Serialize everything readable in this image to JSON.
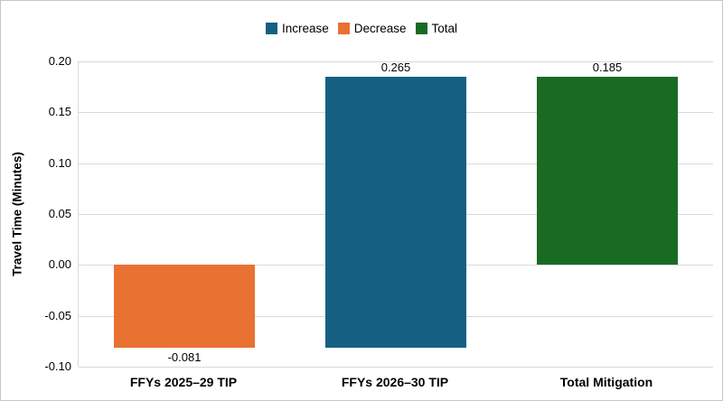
{
  "chart_data": {
    "type": "bar",
    "title": "",
    "xlabel": "",
    "ylabel": "Travel Time (Minutes)",
    "ylim": [
      -0.1,
      0.2
    ],
    "grid": true,
    "legend_position": "top",
    "legend": [
      {
        "label": "Increase",
        "color": "#156082"
      },
      {
        "label": "Decrease",
        "color": "#E97132"
      },
      {
        "label": "Total",
        "color": "#196B24"
      }
    ],
    "categories": [
      "FFYs 2025–29 TIP",
      "FFYs 2026–30 TIP",
      "Total Mitigation"
    ],
    "yticks": [
      {
        "value": 0.2,
        "label": "0.20"
      },
      {
        "value": 0.15,
        "label": "0.15"
      },
      {
        "value": 0.1,
        "label": "0.10"
      },
      {
        "value": 0.05,
        "label": "0.05"
      },
      {
        "value": 0.0,
        "label": "0.00"
      },
      {
        "value": -0.05,
        "label": "-0.05"
      },
      {
        "value": -0.1,
        "label": "-0.10"
      }
    ],
    "bars": [
      {
        "category": "FFYs 2025–29 TIP",
        "series": "Decrease",
        "color": "#E97132",
        "start": 0,
        "end": -0.081,
        "value": -0.081,
        "label": "-0.081",
        "label_position": "below"
      },
      {
        "category": "FFYs 2026–30 TIP",
        "series": "Increase",
        "color": "#156082",
        "start": -0.081,
        "end": 0.185,
        "value": 0.265,
        "label": "0.265",
        "label_position": "above"
      },
      {
        "category": "Total Mitigation",
        "series": "Total",
        "color": "#196B24",
        "start": 0,
        "end": 0.185,
        "value": 0.185,
        "label": "0.185",
        "label_position": "above"
      }
    ],
    "colors": {
      "grid": "#D9D9D9",
      "axis": "#D9D9D9",
      "text": "#000000",
      "background": "#FFFFFF",
      "border": "#C6C6C6"
    }
  }
}
